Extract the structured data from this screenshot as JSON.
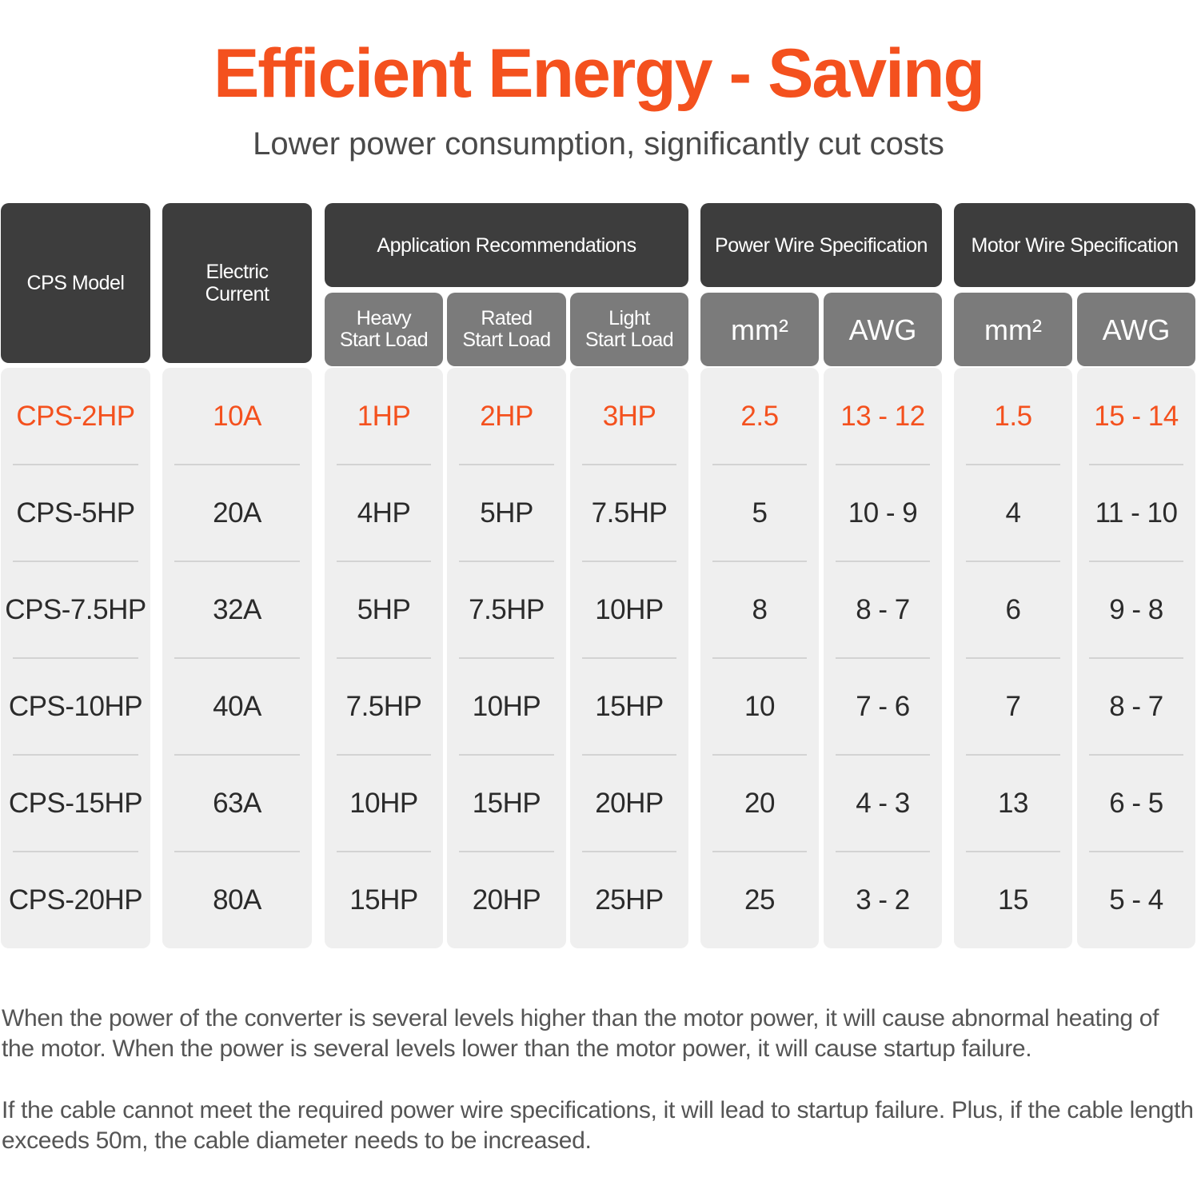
{
  "title": "Efficient Energy - Saving",
  "subtitle": "Lower power consumption, significantly cut costs",
  "table": {
    "headers": {
      "model": "CPS Model",
      "current_line1": "Electric",
      "current_line2": "Current",
      "application": "Application Recommendations",
      "power_wire": "Power Wire Specification",
      "motor_wire": "Motor Wire Specification"
    },
    "subheaders": {
      "heavy_line1": "Heavy",
      "heavy_line2": "Start Load",
      "rated_line1": "Rated",
      "rated_line2": "Start Load",
      "light_line1": "Light",
      "light_line2": "Start Load",
      "power_mm2": "mm²",
      "power_awg": "AWG",
      "motor_mm2": "mm²",
      "motor_awg": "AWG"
    },
    "rows": [
      [
        "CPS-2HP",
        "10A",
        "1HP",
        "2HP",
        "3HP",
        "2.5",
        "13 - 12",
        "1.5",
        "15 - 14"
      ],
      [
        "CPS-5HP",
        "20A",
        "4HP",
        "5HP",
        "7.5HP",
        "5",
        "10 - 9",
        "4",
        "11 - 10"
      ],
      [
        "CPS-7.5HP",
        "32A",
        "5HP",
        "7.5HP",
        "10HP",
        "8",
        "8 - 7",
        "6",
        "9 - 8"
      ],
      [
        "CPS-10HP",
        "40A",
        "7.5HP",
        "10HP",
        "15HP",
        "10",
        "7 - 6",
        "7",
        "8 - 7"
      ],
      [
        "CPS-15HP",
        "63A",
        "10HP",
        "15HP",
        "20HP",
        "20",
        "4 - 3",
        "13",
        "6 - 5"
      ],
      [
        "CPS-20HP",
        "80A",
        "15HP",
        "20HP",
        "25HP",
        "25",
        "3 - 2",
        "15",
        "5 - 4"
      ]
    ]
  },
  "notes": {
    "note1": "When the power of the converter is several levels higher than the motor power, it will cause abnormal heating of the motor. When the power is several levels lower than the motor power, it will cause startup failure.",
    "note2": "If the cable cannot meet the required power wire specifications, it will lead to startup failure. Plus, if the cable length exceeds 50m, the cable diameter needs to be increased."
  },
  "colors": {
    "accent": "#f4511e",
    "header_dark": "#3d3d3d",
    "header_mid": "#7b7b7b",
    "column_bg": "#efefef"
  }
}
